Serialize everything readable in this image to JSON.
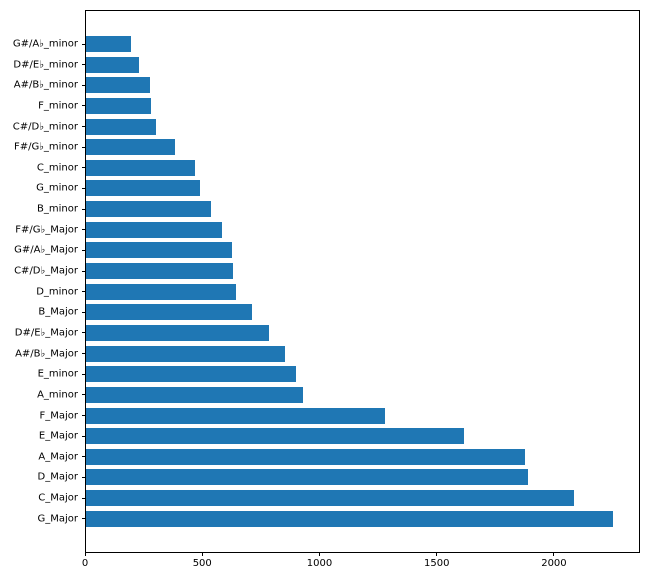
{
  "figure": {
    "background": "#ffffff",
    "title": ""
  },
  "chart_data": {
    "type": "bar",
    "orientation": "horizontal",
    "title": "",
    "xlabel": "",
    "ylabel": "",
    "grid": false,
    "legend_position": "none",
    "bar_color": "#1f77b4",
    "frame_color": "#000000",
    "xlim": [
      0,
      2367
    ],
    "xtick_values": [
      0,
      500,
      1000,
      1500,
      2000
    ],
    "xtick_labels": [
      "0",
      "500",
      "1000",
      "1500",
      "2000"
    ],
    "categories": [
      "G#/A♭_minor",
      "D#/E♭_minor",
      "A#/B♭_minor",
      "F_minor",
      "C#/D♭_minor",
      "F#/G♭_minor",
      "C_minor",
      "G_minor",
      "B_minor",
      "F#/G♭_Major",
      "G#/A♭_Major",
      "C#/D♭_Major",
      "D_minor",
      "B_Major",
      "D#/E♭_Major",
      "A#/B♭_Major",
      "E_minor",
      "A_minor",
      "F_Major",
      "E_Major",
      "A_Major",
      "D_Major",
      "C_Major",
      "G_Major"
    ],
    "values": [
      192,
      226,
      272,
      277,
      301,
      383,
      468,
      490,
      537,
      580,
      627,
      631,
      643,
      710,
      785,
      852,
      897,
      930,
      1280,
      1618,
      1880,
      1893,
      2090,
      2255
    ]
  }
}
